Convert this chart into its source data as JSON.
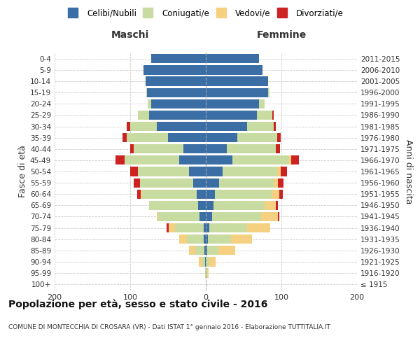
{
  "age_groups": [
    "100+",
    "95-99",
    "90-94",
    "85-89",
    "80-84",
    "75-79",
    "70-74",
    "65-69",
    "60-64",
    "55-59",
    "50-54",
    "45-49",
    "40-44",
    "35-39",
    "30-34",
    "25-29",
    "20-24",
    "15-19",
    "10-14",
    "5-9",
    "0-4"
  ],
  "birth_years": [
    "≤ 1915",
    "1916-1920",
    "1921-1925",
    "1926-1930",
    "1931-1935",
    "1936-1940",
    "1941-1945",
    "1946-1950",
    "1951-1955",
    "1956-1960",
    "1961-1965",
    "1966-1970",
    "1971-1975",
    "1976-1980",
    "1981-1985",
    "1986-1990",
    "1991-1995",
    "1996-2000",
    "2001-2005",
    "2006-2010",
    "2011-2015"
  ],
  "males": {
    "celibi": [
      0,
      0,
      1,
      2,
      3,
      3,
      8,
      10,
      12,
      17,
      22,
      35,
      30,
      50,
      65,
      75,
      72,
      78,
      80,
      82,
      72
    ],
    "coniugati": [
      0,
      1,
      4,
      12,
      22,
      38,
      55,
      65,
      72,
      70,
      68,
      72,
      65,
      55,
      35,
      15,
      5,
      1,
      0,
      0,
      0
    ],
    "vedovi": [
      0,
      0,
      4,
      8,
      10,
      8,
      2,
      0,
      2,
      0,
      0,
      0,
      0,
      0,
      0,
      0,
      0,
      0,
      0,
      0,
      0
    ],
    "divorziati": [
      0,
      0,
      0,
      0,
      0,
      3,
      0,
      0,
      5,
      8,
      10,
      12,
      5,
      5,
      5,
      0,
      0,
      0,
      0,
      0,
      0
    ]
  },
  "females": {
    "nubili": [
      0,
      0,
      0,
      2,
      3,
      5,
      8,
      10,
      12,
      18,
      22,
      35,
      28,
      42,
      55,
      68,
      70,
      82,
      82,
      75,
      70
    ],
    "coniugate": [
      0,
      2,
      5,
      15,
      30,
      50,
      65,
      68,
      75,
      72,
      72,
      75,
      65,
      52,
      35,
      20,
      8,
      2,
      0,
      0,
      0
    ],
    "vedove": [
      0,
      2,
      8,
      22,
      28,
      30,
      22,
      15,
      10,
      5,
      5,
      3,
      0,
      0,
      0,
      0,
      0,
      0,
      0,
      0,
      0
    ],
    "divorziate": [
      0,
      0,
      0,
      0,
      0,
      0,
      2,
      2,
      5,
      8,
      8,
      10,
      5,
      5,
      3,
      2,
      0,
      0,
      0,
      0,
      0
    ]
  },
  "colors": {
    "celibi": "#3a6ea5",
    "coniugati": "#c8dba0",
    "vedovi": "#f5d080",
    "divorziati": "#cc2222"
  },
  "xlim": 200,
  "title": "Popolazione per età, sesso e stato civile - 2016",
  "subtitle": "COMUNE DI MONTECCHIA DI CROSARA (VR) - Dati ISTAT 1° gennaio 2016 - Elaborazione TUTTITALIA.IT",
  "ylabel_left": "Fasce di età",
  "ylabel_right": "Anni di nascita",
  "xlabel_left": "Maschi",
  "xlabel_right": "Femmine",
  "header_color": "#333333",
  "legend_labels": [
    "Celibi/Nubili",
    "Coniugati/e",
    "Vedovi/e",
    "Divorziati/e"
  ]
}
